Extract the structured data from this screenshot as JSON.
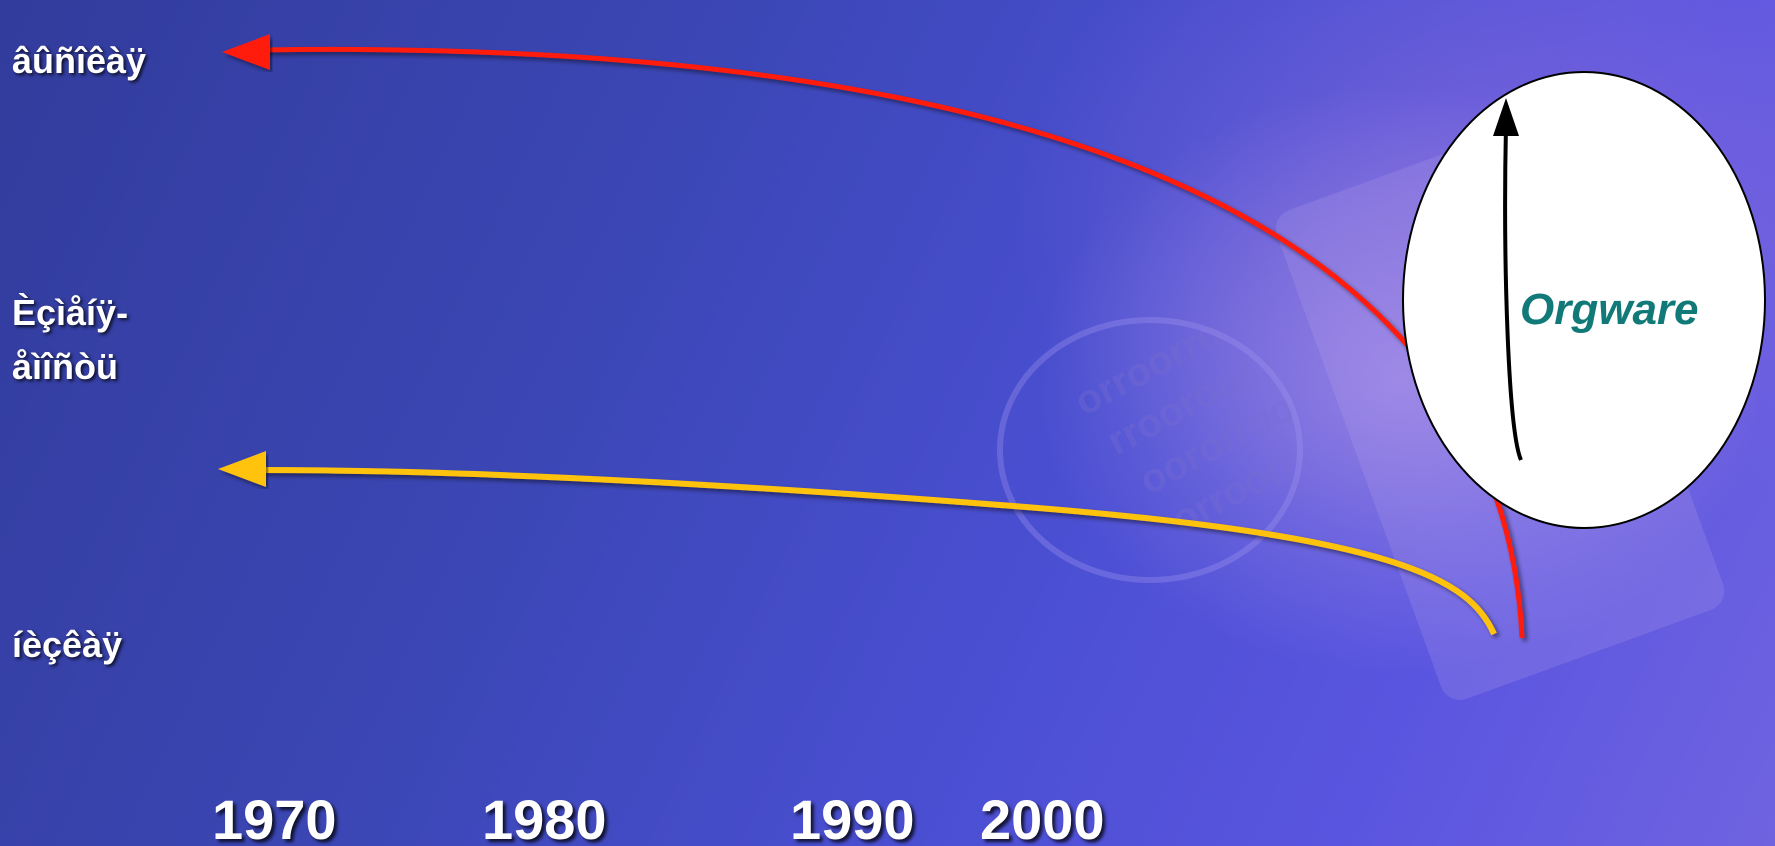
{
  "y_levels": {
    "top_label": "âûñîêàÿ",
    "mid_label_line1": "Èçìåíÿ-",
    "mid_label_line2": "åìîñòü",
    "bottom_label": "íèçêàÿ"
  },
  "x_ticks": [
    "1970",
    "1980",
    "1990",
    "2000"
  ],
  "callout": {
    "label": "Orgware"
  },
  "colors": {
    "red_curve": "#ff1a10",
    "yellow_curve": "#ffc20e",
    "axes": "#000000",
    "orgware_text": "#117a78",
    "ellipse_fill": "#ffffff"
  },
  "icons": {
    "red_arrowhead": "arrow-left-icon",
    "yellow_arrowhead": "arrow-left-icon",
    "orgware_arrowhead": "arrow-up-icon"
  }
}
